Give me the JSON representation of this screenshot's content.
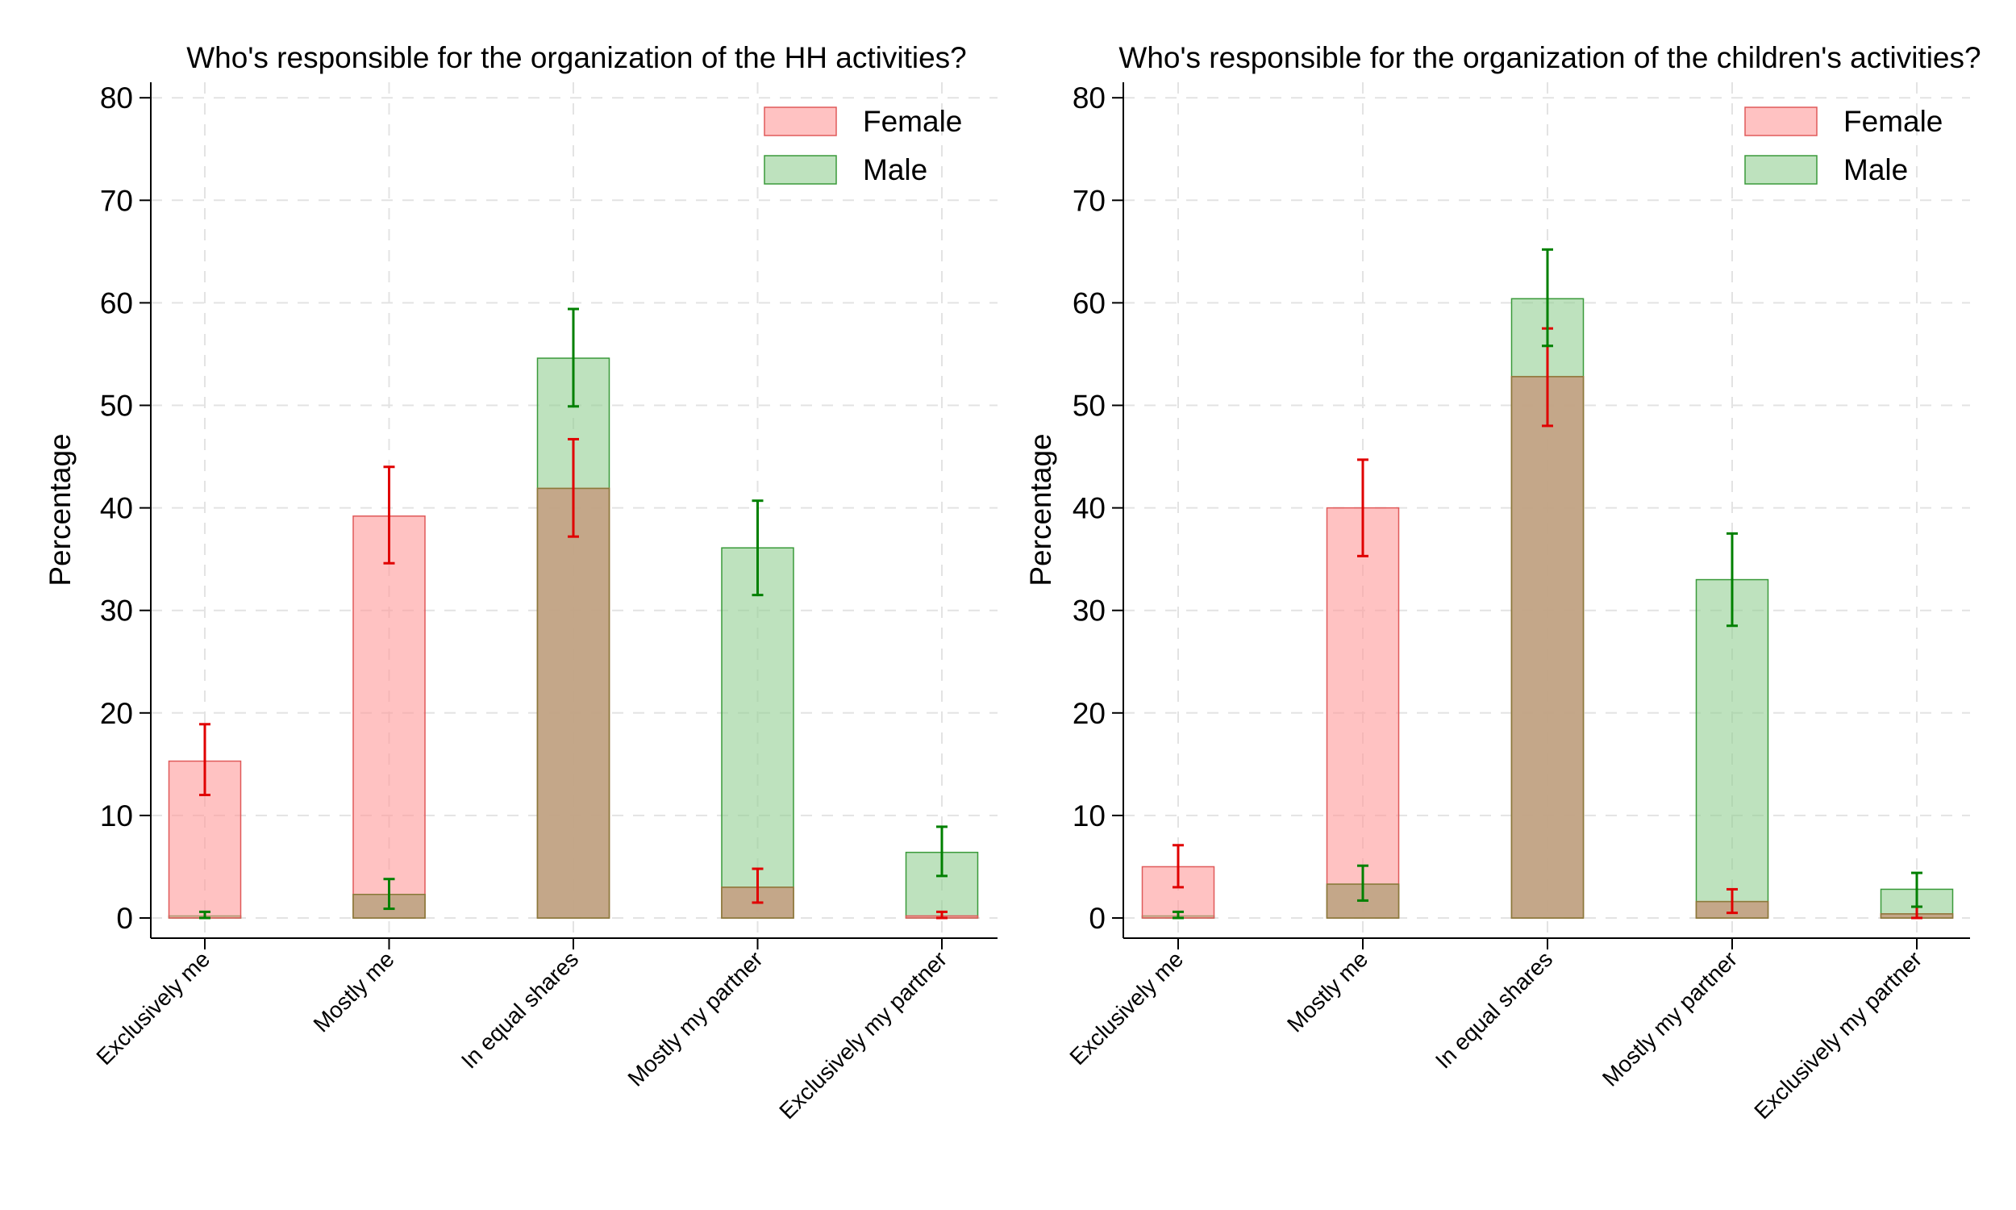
{
  "figure": {
    "colors": {
      "female_fill": "#ff9a9a",
      "female_stroke": "#e05a5a",
      "male_fill": "#93cf93",
      "male_stroke": "#3a9a3a",
      "female_err": "#e00000",
      "male_err": "#008000",
      "grid": "#e3e3e3",
      "axis": "#000000"
    }
  },
  "chart_data": [
    {
      "type": "bar",
      "title": "Who's responsible for the organization of the HH activities?",
      "xlabel": "",
      "ylabel": "Percentage",
      "ylim": [
        -2,
        81
      ],
      "yticks": [
        "0",
        "10",
        "20",
        "30",
        "40",
        "50",
        "60",
        "70",
        "80"
      ],
      "grid": true,
      "legend_position": "top-right",
      "categories": [
        "Exclusively me",
        "Mostly me",
        "In equal shares",
        "Mostly my partner",
        "Exclusively my partner"
      ],
      "series": [
        {
          "name": "Female",
          "values": [
            15.3,
            39.2,
            41.9,
            3.0,
            0.2
          ],
          "err_low": [
            12.0,
            34.6,
            37.2,
            1.5,
            0.0
          ],
          "err_high": [
            18.9,
            44.0,
            46.7,
            4.8,
            0.6
          ]
        },
        {
          "name": "Male",
          "values": [
            0.2,
            2.3,
            54.6,
            36.1,
            6.4
          ],
          "err_low": [
            0.0,
            0.9,
            49.9,
            31.5,
            4.1
          ],
          "err_high": [
            0.6,
            3.8,
            59.4,
            40.7,
            8.9
          ]
        }
      ]
    },
    {
      "type": "bar",
      "title": "Who's responsible for the organization of the children's activities?",
      "xlabel": "",
      "ylabel": "Percentage",
      "ylim": [
        -2,
        81
      ],
      "yticks": [
        "0",
        "10",
        "20",
        "30",
        "40",
        "50",
        "60",
        "70",
        "80"
      ],
      "grid": true,
      "legend_position": "top-right",
      "categories": [
        "Exclusively me",
        "Mostly me",
        "In equal shares",
        "Mostly my partner",
        "Exclusively my partner"
      ],
      "series": [
        {
          "name": "Female",
          "values": [
            5.0,
            40.0,
            52.8,
            1.6,
            0.4
          ],
          "err_low": [
            3.0,
            35.3,
            48.0,
            0.5,
            0.0
          ],
          "err_high": [
            7.1,
            44.7,
            57.5,
            2.8,
            1.1
          ]
        },
        {
          "name": "Male",
          "values": [
            0.2,
            3.3,
            60.4,
            33.0,
            2.8
          ],
          "err_low": [
            0.0,
            1.7,
            55.8,
            28.5,
            1.1
          ],
          "err_high": [
            0.6,
            5.1,
            65.2,
            37.5,
            4.4
          ]
        }
      ]
    }
  ]
}
